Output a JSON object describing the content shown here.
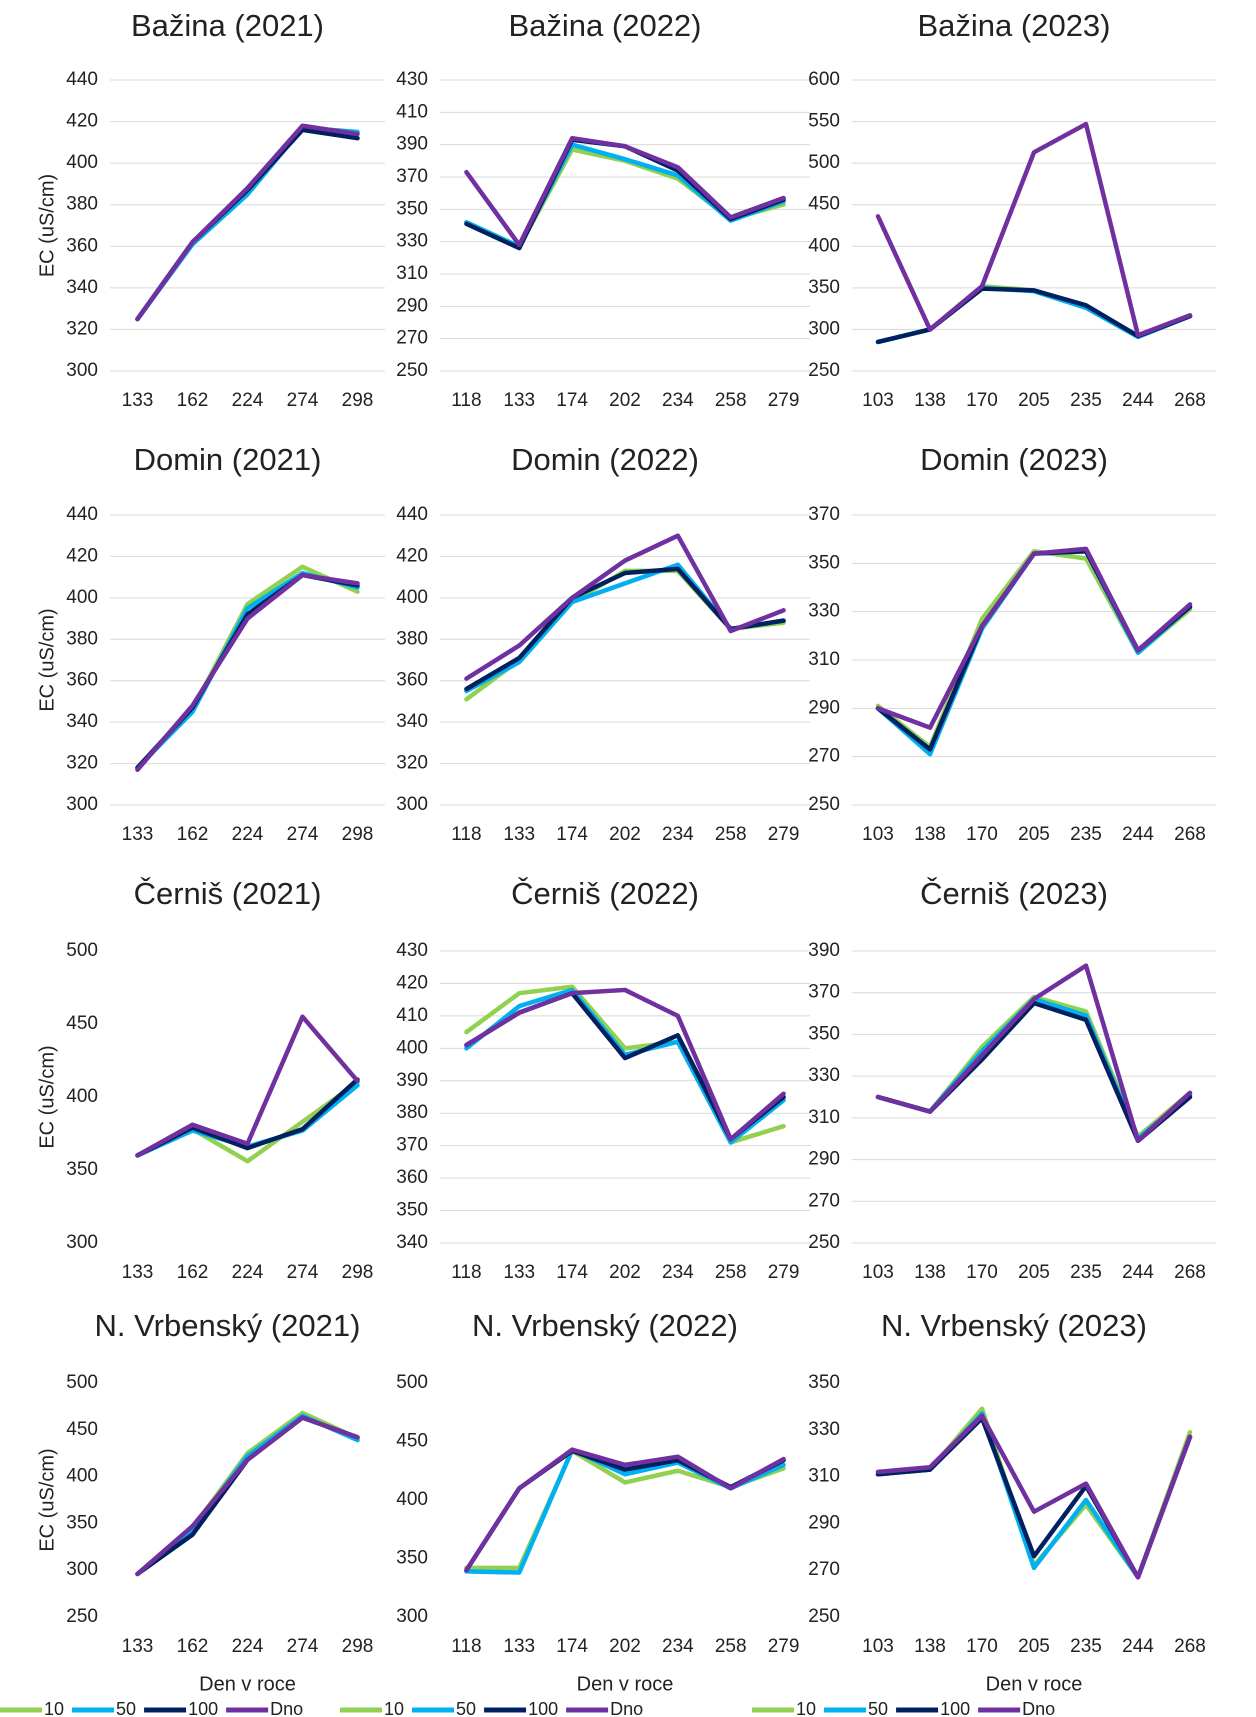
{
  "chart_data": [
    {
      "type": "line",
      "title": "Bažina (2021)",
      "y_label": "EC (uS/cm)",
      "categories": [
        "133",
        "162",
        "224",
        "274",
        "298"
      ],
      "ylim": [
        300,
        440
      ],
      "yticks": [
        300,
        320,
        340,
        360,
        380,
        400,
        420,
        440
      ],
      "grid": true,
      "series": [
        {
          "name": "10",
          "color": "#92d050",
          "values": [
            325,
            361,
            385,
            417,
            415
          ]
        },
        {
          "name": "50",
          "color": "#00b0f0",
          "values": [
            325,
            361,
            385,
            417,
            415
          ]
        },
        {
          "name": "100",
          "color": "#002060",
          "values": [
            325,
            362,
            387,
            416,
            412
          ]
        },
        {
          "name": "Dno",
          "color": "#7030a0",
          "values": [
            325,
            362,
            388,
            418,
            414
          ]
        }
      ]
    },
    {
      "type": "line",
      "title": "Bažina (2022)",
      "categories": [
        "118",
        "133",
        "174",
        "202",
        "234",
        "258",
        "279"
      ],
      "ylim": [
        250,
        430
      ],
      "yticks": [
        250,
        270,
        290,
        310,
        330,
        350,
        370,
        390,
        410,
        430
      ],
      "grid": true,
      "series": [
        {
          "name": "10",
          "color": "#92d050",
          "values": [
            342,
            327,
            387,
            380,
            369,
            344,
            353
          ]
        },
        {
          "name": "50",
          "color": "#00b0f0",
          "values": [
            342,
            327,
            390,
            381,
            371,
            343,
            355
          ]
        },
        {
          "name": "100",
          "color": "#002060",
          "values": [
            341,
            326,
            393,
            389,
            374,
            344,
            356
          ]
        },
        {
          "name": "Dno",
          "color": "#7030a0",
          "values": [
            373,
            328,
            394,
            389,
            376,
            345,
            357
          ]
        }
      ]
    },
    {
      "type": "line",
      "title": "Bažina (2023)",
      "categories": [
        "103",
        "138",
        "170",
        "205",
        "235",
        "244",
        "268"
      ],
      "ylim": [
        250,
        600
      ],
      "yticks": [
        250,
        300,
        350,
        400,
        450,
        500,
        550,
        600
      ],
      "grid": true,
      "series": [
        {
          "name": "10",
          "color": "#92d050",
          "values": [
            285,
            300,
            352,
            347,
            328,
            292,
            317
          ]
        },
        {
          "name": "50",
          "color": "#00b0f0",
          "values": [
            285,
            300,
            350,
            346,
            326,
            291,
            316
          ]
        },
        {
          "name": "100",
          "color": "#002060",
          "values": [
            285,
            300,
            349,
            347,
            329,
            292,
            316
          ]
        },
        {
          "name": "Dno",
          "color": "#7030a0",
          "values": [
            436,
            300,
            352,
            513,
            547,
            293,
            317
          ]
        }
      ]
    },
    {
      "type": "line",
      "title": "Domin (2021)",
      "y_label": "EC (uS/cm)",
      "categories": [
        "133",
        "162",
        "224",
        "274",
        "298"
      ],
      "ylim": [
        300,
        440
      ],
      "yticks": [
        300,
        320,
        340,
        360,
        380,
        400,
        420,
        440
      ],
      "grid": true,
      "series": [
        {
          "name": "10",
          "color": "#92d050",
          "values": [
            318,
            346,
            397,
            415,
            403
          ]
        },
        {
          "name": "50",
          "color": "#00b0f0",
          "values": [
            318,
            345,
            395,
            412,
            405
          ]
        },
        {
          "name": "100",
          "color": "#002060",
          "values": [
            318,
            347,
            392,
            411,
            406
          ]
        },
        {
          "name": "Dno",
          "color": "#7030a0",
          "values": [
            317,
            348,
            390,
            411,
            407
          ]
        }
      ]
    },
    {
      "type": "line",
      "title": "Domin (2022)",
      "categories": [
        "118",
        "133",
        "174",
        "202",
        "234",
        "258",
        "279"
      ],
      "ylim": [
        300,
        440
      ],
      "yticks": [
        300,
        320,
        340,
        360,
        380,
        400,
        420,
        440
      ],
      "grid": true,
      "series": [
        {
          "name": "10",
          "color": "#92d050",
          "values": [
            351,
            370,
            398,
            413,
            413,
            385,
            388
          ]
        },
        {
          "name": "50",
          "color": "#00b0f0",
          "values": [
            355,
            369,
            398,
            407,
            416,
            385,
            389
          ]
        },
        {
          "name": "100",
          "color": "#002060",
          "values": [
            356,
            371,
            400,
            412,
            414,
            385,
            389
          ]
        },
        {
          "name": "Dno",
          "color": "#7030a0",
          "values": [
            361,
            377,
            400,
            418,
            430,
            384,
            394
          ]
        }
      ]
    },
    {
      "type": "line",
      "title": "Domin (2023)",
      "categories": [
        "103",
        "138",
        "170",
        "205",
        "235",
        "244",
        "268"
      ],
      "ylim": [
        250,
        370
      ],
      "yticks": [
        250,
        270,
        290,
        310,
        330,
        350,
        370
      ],
      "grid": true,
      "series": [
        {
          "name": "10",
          "color": "#92d050",
          "values": [
            291,
            274,
            327,
            355,
            352,
            313,
            331
          ]
        },
        {
          "name": "50",
          "color": "#00b0f0",
          "values": [
            290,
            271,
            323,
            354,
            355,
            313,
            332
          ]
        },
        {
          "name": "100",
          "color": "#002060",
          "values": [
            290,
            273,
            324,
            354,
            355,
            314,
            332
          ]
        },
        {
          "name": "Dno",
          "color": "#7030a0",
          "values": [
            290,
            282,
            324,
            354,
            356,
            314,
            333
          ]
        }
      ]
    },
    {
      "type": "line",
      "title": "Černiš (2021)",
      "y_label": "EC (uS/cm)",
      "categories": [
        "133",
        "162",
        "224",
        "274",
        "298"
      ],
      "ylim": [
        300,
        500
      ],
      "yticks": [
        300,
        350,
        400,
        450,
        500
      ],
      "grid": false,
      "series": [
        {
          "name": "10",
          "color": "#92d050",
          "values": [
            360,
            378,
            356,
            383,
            410
          ]
        },
        {
          "name": "50",
          "color": "#00b0f0",
          "values": [
            360,
            377,
            366,
            377,
            408
          ]
        },
        {
          "name": "100",
          "color": "#002060",
          "values": [
            360,
            379,
            365,
            378,
            412
          ]
        },
        {
          "name": "Dno",
          "color": "#7030a0",
          "values": [
            360,
            381,
            368,
            455,
            411
          ]
        }
      ]
    },
    {
      "type": "line",
      "title": "Černiš (2022)",
      "categories": [
        "118",
        "133",
        "174",
        "202",
        "234",
        "258",
        "279"
      ],
      "ylim": [
        340,
        430
      ],
      "yticks": [
        340,
        350,
        360,
        370,
        380,
        390,
        400,
        410,
        420,
        430
      ],
      "grid": true,
      "series": [
        {
          "name": "10",
          "color": "#92d050",
          "values": [
            405,
            417,
            419,
            400,
            402,
            371,
            376
          ]
        },
        {
          "name": "50",
          "color": "#00b0f0",
          "values": [
            400,
            413,
            418,
            398,
            402,
            371,
            384
          ]
        },
        {
          "name": "100",
          "color": "#002060",
          "values": [
            401,
            411,
            417,
            397,
            404,
            372,
            385
          ]
        },
        {
          "name": "Dno",
          "color": "#7030a0",
          "values": [
            401,
            411,
            417,
            418,
            410,
            372,
            386
          ]
        }
      ]
    },
    {
      "type": "line",
      "title": "Černiš (2023)",
      "categories": [
        "103",
        "138",
        "170",
        "205",
        "235",
        "244",
        "268"
      ],
      "ylim": [
        250,
        390
      ],
      "yticks": [
        250,
        270,
        290,
        310,
        330,
        350,
        370,
        390
      ],
      "grid": true,
      "series": [
        {
          "name": "10",
          "color": "#92d050",
          "values": [
            320,
            313,
            344,
            368,
            361,
            301,
            322
          ]
        },
        {
          "name": "50",
          "color": "#00b0f0",
          "values": [
            320,
            313,
            342,
            367,
            359,
            300,
            321
          ]
        },
        {
          "name": "100",
          "color": "#002060",
          "values": [
            320,
            313,
            338,
            365,
            357,
            299,
            320
          ]
        },
        {
          "name": "Dno",
          "color": "#7030a0",
          "values": [
            320,
            313,
            340,
            367,
            383,
            299,
            322
          ]
        }
      ]
    },
    {
      "type": "line",
      "title": "N. Vrbenský (2021)",
      "y_label": "EC (uS/cm)",
      "x_label": "Den v roce",
      "legend": "bottom",
      "categories": [
        "133",
        "162",
        "224",
        "274",
        "298"
      ],
      "ylim": [
        250,
        500
      ],
      "yticks": [
        250,
        300,
        350,
        400,
        450,
        500
      ],
      "grid": false,
      "series": [
        {
          "name": "10",
          "color": "#92d050",
          "values": [
            296,
            345,
            425,
            468,
            441
          ]
        },
        {
          "name": "50",
          "color": "#00b0f0",
          "values": [
            296,
            343,
            422,
            465,
            439
          ]
        },
        {
          "name": "100",
          "color": "#002060",
          "values": [
            296,
            338,
            418,
            463,
            442
          ]
        },
        {
          "name": "Dno",
          "color": "#7030a0",
          "values": [
            296,
            347,
            418,
            463,
            442
          ]
        }
      ]
    },
    {
      "type": "line",
      "title": "N. Vrbenský (2022)",
      "x_label": "Den v roce",
      "legend": "bottom",
      "categories": [
        "118",
        "133",
        "174",
        "202",
        "234",
        "258",
        "279"
      ],
      "ylim": [
        300,
        500
      ],
      "yticks": [
        300,
        350,
        400,
        450,
        500
      ],
      "grid": false,
      "series": [
        {
          "name": "10",
          "color": "#92d050",
          "values": [
            342,
            342,
            442,
            415,
            425,
            411,
            427
          ]
        },
        {
          "name": "50",
          "color": "#00b0f0",
          "values": [
            339,
            338,
            443,
            422,
            432,
            410,
            430
          ]
        },
        {
          "name": "100",
          "color": "#002060",
          "values": [
            340,
            410,
            442,
            426,
            434,
            411,
            434
          ]
        },
        {
          "name": "Dno",
          "color": "#7030a0",
          "values": [
            340,
            410,
            443,
            430,
            437,
            410,
            435
          ]
        }
      ]
    },
    {
      "type": "line",
      "title": "N. Vrbenský (2023)",
      "x_label": "Den v roce",
      "legend": "bottom",
      "categories": [
        "103",
        "138",
        "170",
        "205",
        "235",
        "244",
        "268"
      ],
      "ylim": [
        250,
        350
      ],
      "yticks": [
        250,
        270,
        290,
        310,
        330,
        350
      ],
      "grid": false,
      "series": [
        {
          "name": "10",
          "color": "#92d050",
          "values": [
            311,
            313,
            339,
            272,
            298,
            267,
            329
          ]
        },
        {
          "name": "50",
          "color": "#00b0f0",
          "values": [
            311,
            313,
            337,
            271,
            300,
            267,
            327
          ]
        },
        {
          "name": "100",
          "color": "#002060",
          "values": [
            311,
            313,
            335,
            276,
            306,
            267,
            327
          ]
        },
        {
          "name": "Dno",
          "color": "#7030a0",
          "values": [
            312,
            314,
            336,
            295,
            307,
            267,
            327
          ]
        }
      ]
    }
  ]
}
